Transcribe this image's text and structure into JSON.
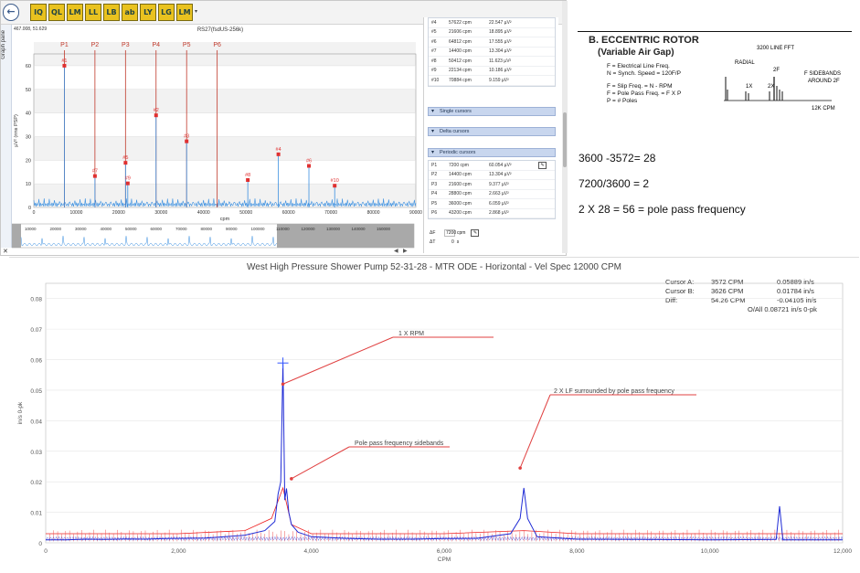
{
  "top_left": {
    "toolbar_buttons": [
      "back",
      "forward",
      "iq",
      "ql",
      "lm",
      "ll",
      "lb",
      "ab",
      "ly",
      "lg",
      "lm2"
    ],
    "side_tab_label": "Graph pane",
    "coords": "467.008, 51.629",
    "cursor_table": [
      {
        "id": "#4",
        "cpm": "57622 cpm",
        "val": "22.547 µV²"
      },
      {
        "id": "#5",
        "cpm": "21606 cpm",
        "val": "18.895 µV²"
      },
      {
        "id": "#6",
        "cpm": "64812 cpm",
        "val": "17.555 µV²"
      },
      {
        "id": "#7",
        "cpm": "14400 cpm",
        "val": "13.304 µV²"
      },
      {
        "id": "#8",
        "cpm": "50412 cpm",
        "val": "11.623 µV²"
      },
      {
        "id": "#9",
        "cpm": "22134 cpm",
        "val": "10.186 µV²"
      },
      {
        "id": "#10",
        "cpm": "70884 cpm",
        "val": "9.159 µV²"
      }
    ],
    "single_cursors_label": "Single cursors",
    "delta_cursors_label": "Delta cursors",
    "periodic_cursors_label": "Periodic cursors",
    "periodic_table": [
      {
        "id": "P1",
        "cpm": "7200 cpm",
        "val": "60.054 µV²"
      },
      {
        "id": "P2",
        "cpm": "14400 cpm",
        "val": "13.304 µV²"
      },
      {
        "id": "P3",
        "cpm": "21600 cpm",
        "val": "9.377 µV²"
      },
      {
        "id": "P4",
        "cpm": "28800 cpm",
        "val": "2.663 µV²"
      },
      {
        "id": "P5",
        "cpm": "36000 cpm",
        "val": "6.059 µV²"
      },
      {
        "id": "P6",
        "cpm": "43200 cpm",
        "val": "2.868 µV²"
      }
    ],
    "delta_f_label": "ΔF",
    "delta_f_value": "7200",
    "delta_f_unit": "cpm",
    "delta_t_label": "ΔT",
    "delta_t_value": "0",
    "delta_t_unit": "s"
  },
  "reference": {
    "title": "B. ECCENTRIC ROTOR",
    "subtitle": "(Variable Air Gap)",
    "lines": [
      "F  = Electrical Line Freq.",
      "N  = Synch. Speed = 120F/P",
      "F  = Slip Freq. = N  - RPM",
      "F  = Pole Pass Freq. = F  X P",
      "P  = # Poles"
    ],
    "fft_title": "3200 LINE FFT",
    "fft_radial": "RADIAL",
    "fft_1x": "1X",
    "fft_2x": "2X",
    "fft_2fl": "2F",
    "fft_sidebands": "F  SIDEBANDS",
    "fft_around": "AROUND 2F",
    "fft_12k": "12K CPM"
  },
  "equations": [
    "3600 -3572= 28",
    "7200/3600 = 2",
    "2 X 28 = 56 = pole pass frequency"
  ],
  "chart_data": [
    {
      "type": "line",
      "title": "RS27(fsdUS-256k)",
      "xlabel": "cpm",
      "ylabel": "µV² (rms PSP)",
      "xlim": [
        0,
        90000
      ],
      "ylim": [
        0,
        65
      ],
      "x_ticks": [
        0,
        10000,
        20000,
        30000,
        40000,
        50000,
        60000,
        70000,
        80000,
        90000
      ],
      "y_ticks": [
        0,
        10,
        20,
        30,
        40,
        50,
        60
      ],
      "periodic_cursors": [
        {
          "label": "P1",
          "x": 7200
        },
        {
          "label": "P2",
          "x": 14400
        },
        {
          "label": "P3",
          "x": 21600
        },
        {
          "label": "P4",
          "x": 28800
        },
        {
          "label": "P5",
          "x": 36000
        },
        {
          "label": "P6",
          "x": 43200
        }
      ],
      "peaks": [
        {
          "label": "#1",
          "x": 7200,
          "y": 60
        },
        {
          "label": "#2",
          "x": 28800,
          "y": 39
        },
        {
          "label": "#3",
          "x": 36000,
          "y": 28
        },
        {
          "label": "#4",
          "x": 57622,
          "y": 22.5
        },
        {
          "label": "#5",
          "x": 21606,
          "y": 18.9
        },
        {
          "label": "#6",
          "x": 64812,
          "y": 17.6
        },
        {
          "label": "#7",
          "x": 14400,
          "y": 13.3
        },
        {
          "label": "#8",
          "x": 50412,
          "y": 11.6
        },
        {
          "label": "#9",
          "x": 22134,
          "y": 10.2
        },
        {
          "label": "#10",
          "x": 70884,
          "y": 9.2
        }
      ],
      "overview_ticks": [
        "10000",
        "20000",
        "30000",
        "40000",
        "50000",
        "60000",
        "70000",
        "80000",
        "90000",
        "100000",
        "110000",
        "120000",
        "130000",
        "140000",
        "150000"
      ]
    },
    {
      "type": "line",
      "title": "West High Pressure Shower Pump 52-31-28 - MTR ODE - Horizontal - Vel Spec 12000 CPM",
      "xlabel": "CPM",
      "ylabel": "in/s 0-pk",
      "xlim": [
        0,
        12000
      ],
      "ylim": [
        0,
        0.085
      ],
      "x_ticks": [
        0,
        2000,
        4000,
        6000,
        8000,
        10000,
        12000
      ],
      "x_tick_labels": [
        "0",
        "2,000",
        "4,000",
        "6,000",
        "8,000",
        "10,000",
        "12,000"
      ],
      "y_ticks": [
        0,
        0.01,
        0.02,
        0.03,
        0.04,
        0.05,
        0.06,
        0.07,
        0.08
      ],
      "y_tick_labels": [
        "0",
        "0.01",
        "0.02",
        "0.03",
        "0.04",
        "0.05",
        "0.06",
        "0.07",
        "0.08"
      ],
      "series": [
        {
          "color": "#1f2bd6",
          "x": [
            0,
            300,
            600,
            900,
            1200,
            1500,
            1800,
            2100,
            2400,
            2700,
            3000,
            3300,
            3450,
            3500,
            3540,
            3572,
            3600,
            3626,
            3660,
            3700,
            3800,
            4000,
            4500,
            5000,
            5500,
            6000,
            6500,
            7000,
            7144,
            7200,
            7256,
            7400,
            8000,
            9000,
            10000,
            11000,
            11050,
            11100,
            12000
          ],
          "y": [
            0.001,
            0.001,
            0.0012,
            0.0011,
            0.0013,
            0.0012,
            0.0014,
            0.0015,
            0.0016,
            0.002,
            0.0025,
            0.004,
            0.007,
            0.016,
            0.02,
            0.0589,
            0.014,
            0.0178,
            0.01,
            0.006,
            0.0035,
            0.002,
            0.0015,
            0.0012,
            0.0012,
            0.0014,
            0.0015,
            0.003,
            0.008,
            0.018,
            0.008,
            0.002,
            0.0012,
            0.0011,
            0.001,
            0.0011,
            0.012,
            0.001,
            0.001
          ]
        },
        {
          "color": "#ee2222",
          "x": [
            0,
            1000,
            2000,
            3000,
            3400,
            3572,
            3700,
            4000,
            6000,
            7200,
            8000,
            10000,
            12000
          ],
          "y": [
            0.003,
            0.003,
            0.003,
            0.004,
            0.008,
            0.018,
            0.006,
            0.003,
            0.003,
            0.004,
            0.003,
            0.003,
            0.003
          ]
        }
      ],
      "cursors": [
        {
          "label": "Cursor A:",
          "x_text": "3572 CPM",
          "y_text": "0.05889 in/s"
        },
        {
          "label": "Cursor B:",
          "x_text": "3626 CPM",
          "y_text": "0.01784 in/s"
        },
        {
          "label": "Diff:",
          "x_text": "54.26 CPM",
          "y_text": "-0.04105 in/s"
        }
      ],
      "overall": "O/All 0.08721 in/s 0-pk",
      "annotations": [
        {
          "text": "1 X RPM",
          "x": 3572,
          "y": 0.052
        },
        {
          "text": "Pole pass frequency sidebands",
          "x": 3700,
          "y": 0.021
        },
        {
          "text": "2 X LF surrounded by pole pass frequency",
          "x": 7144,
          "y": 0.0245
        }
      ]
    }
  ]
}
